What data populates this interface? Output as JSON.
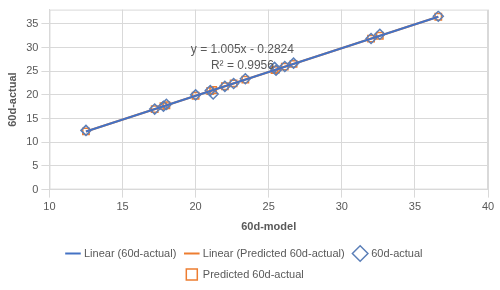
{
  "chart_data": {
    "type": "scatter",
    "x_label": "60d-model",
    "y_label": "60d-actual",
    "annotations": [
      "y = 1.005x - 0.2824",
      "R² = 0.9956"
    ],
    "xlim": [
      10,
      40
    ],
    "xticks": [
      10,
      15,
      20,
      25,
      30,
      35,
      40
    ],
    "ylim": [
      0,
      38
    ],
    "yticks": [
      0,
      5,
      10,
      15,
      20,
      25,
      30,
      35
    ],
    "grid": true,
    "legend": "bottom",
    "series": [
      {
        "name": "60d-actual",
        "type": "scatter",
        "marker": "diamond",
        "color": "#5b7fb8",
        "x": [
          12.5,
          17.2,
          17.8,
          18.0,
          20.0,
          21.0,
          21.2,
          22.0,
          22.6,
          23.4,
          25.4,
          25.5,
          26.1,
          26.7,
          32.0,
          32.6,
          36.6
        ],
        "values": [
          12.5,
          17.0,
          17.6,
          18.0,
          20.0,
          20.9,
          20.2,
          21.8,
          22.4,
          23.4,
          25.8,
          25.2,
          26.0,
          26.7,
          31.9,
          32.8,
          36.6
        ]
      },
      {
        "name": "Predicted 60d-actual",
        "type": "scatter",
        "marker": "square",
        "color": "#ed7d31",
        "x": [
          12.5,
          17.2,
          17.8,
          18.0,
          20.0,
          21.0,
          21.2,
          22.0,
          22.6,
          23.4,
          25.4,
          25.5,
          26.1,
          26.7,
          32.0,
          32.6,
          36.6
        ],
        "values": [
          12.28,
          17.0,
          17.61,
          17.81,
          19.82,
          20.82,
          21.02,
          21.83,
          22.43,
          23.23,
          25.24,
          25.34,
          25.95,
          26.55,
          31.88,
          32.48,
          36.5
        ]
      },
      {
        "name": "Linear (60d-actual)",
        "type": "line",
        "line_style": "solid",
        "color": "#4472c4",
        "x": [
          12.5,
          36.6
        ],
        "values": [
          12.28,
          36.5
        ]
      },
      {
        "name": "Linear (Predicted 60d-actual)",
        "type": "line",
        "line_style": "solid",
        "color": "#ed7d31",
        "x": [
          12.5,
          36.6
        ],
        "values": [
          12.28,
          36.5
        ]
      }
    ]
  }
}
